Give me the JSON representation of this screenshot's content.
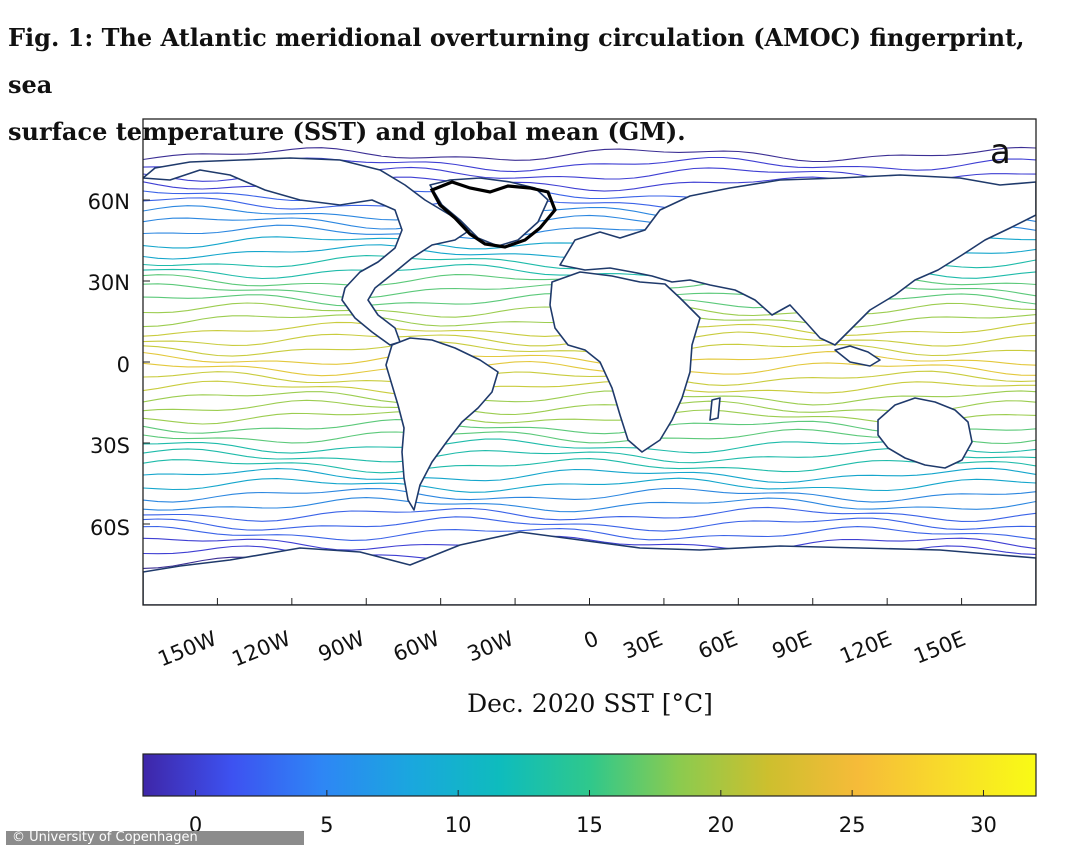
{
  "caption": {
    "line1": "Fig. 1: The Atlantic meridional overturning circulation (AMOC) fingerprint, sea",
    "line2": "surface temperature (SST) and global mean (GM)."
  },
  "panel_letter": "a",
  "map": {
    "lon_ticks": [
      "150W",
      "120W",
      "90W",
      "60W",
      "30W",
      "0",
      "30E",
      "60E",
      "90E",
      "120E",
      "150E"
    ],
    "lon_values": [
      -150,
      -120,
      -90,
      -60,
      -30,
      0,
      30,
      60,
      90,
      120,
      150
    ],
    "lat_ticks": [
      "60N",
      "30N",
      "0",
      "30S",
      "60S"
    ],
    "lat_values": [
      60,
      30,
      0,
      -30,
      -60
    ],
    "lon_range": [
      -180,
      180
    ],
    "lat_range": [
      -90,
      90
    ],
    "xlabel": "Dec.  2020 SST [°C]",
    "contour_colors": [
      "#3b2e94",
      "#3f3fd3",
      "#3b63e8",
      "#2c87e0",
      "#15a6cc",
      "#1fbbaa",
      "#5cc97a",
      "#9ccd50",
      "#c9cc3e",
      "#e3c83c"
    ]
  },
  "colorbar": {
    "ticks": [
      "0",
      "5",
      "10",
      "15",
      "20",
      "25",
      "30"
    ],
    "values": [
      0,
      5,
      10,
      15,
      20,
      25,
      30
    ],
    "range": [
      -2,
      32
    ],
    "colors": [
      "#3e26a8",
      "#3d52f1",
      "#2e86f5",
      "#1aa7de",
      "#0ebcbd",
      "#2fc88c",
      "#8bcb4f",
      "#cdbf2e",
      "#f6bb39",
      "#f8dc2a",
      "#f9fb15"
    ]
  },
  "credit": "© University of Copenhagen"
}
